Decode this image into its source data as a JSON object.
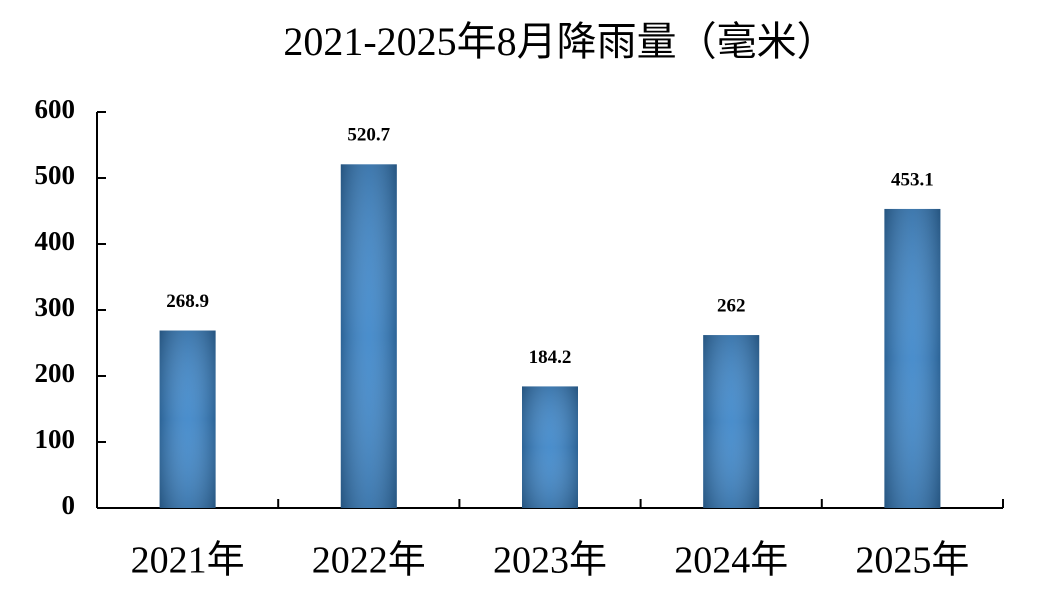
{
  "chart_data": {
    "type": "bar",
    "title": "2021-2025年8月降雨量（毫米）",
    "categories": [
      "2021年",
      "2022年",
      "2023年",
      "2024年",
      "2025年"
    ],
    "values": [
      268.9,
      520.7,
      184.2,
      262,
      453.1
    ],
    "color": "#3a84c8",
    "ylim": [
      0,
      600
    ],
    "yticks": [
      0,
      100,
      200,
      300,
      400,
      500,
      600
    ]
  }
}
